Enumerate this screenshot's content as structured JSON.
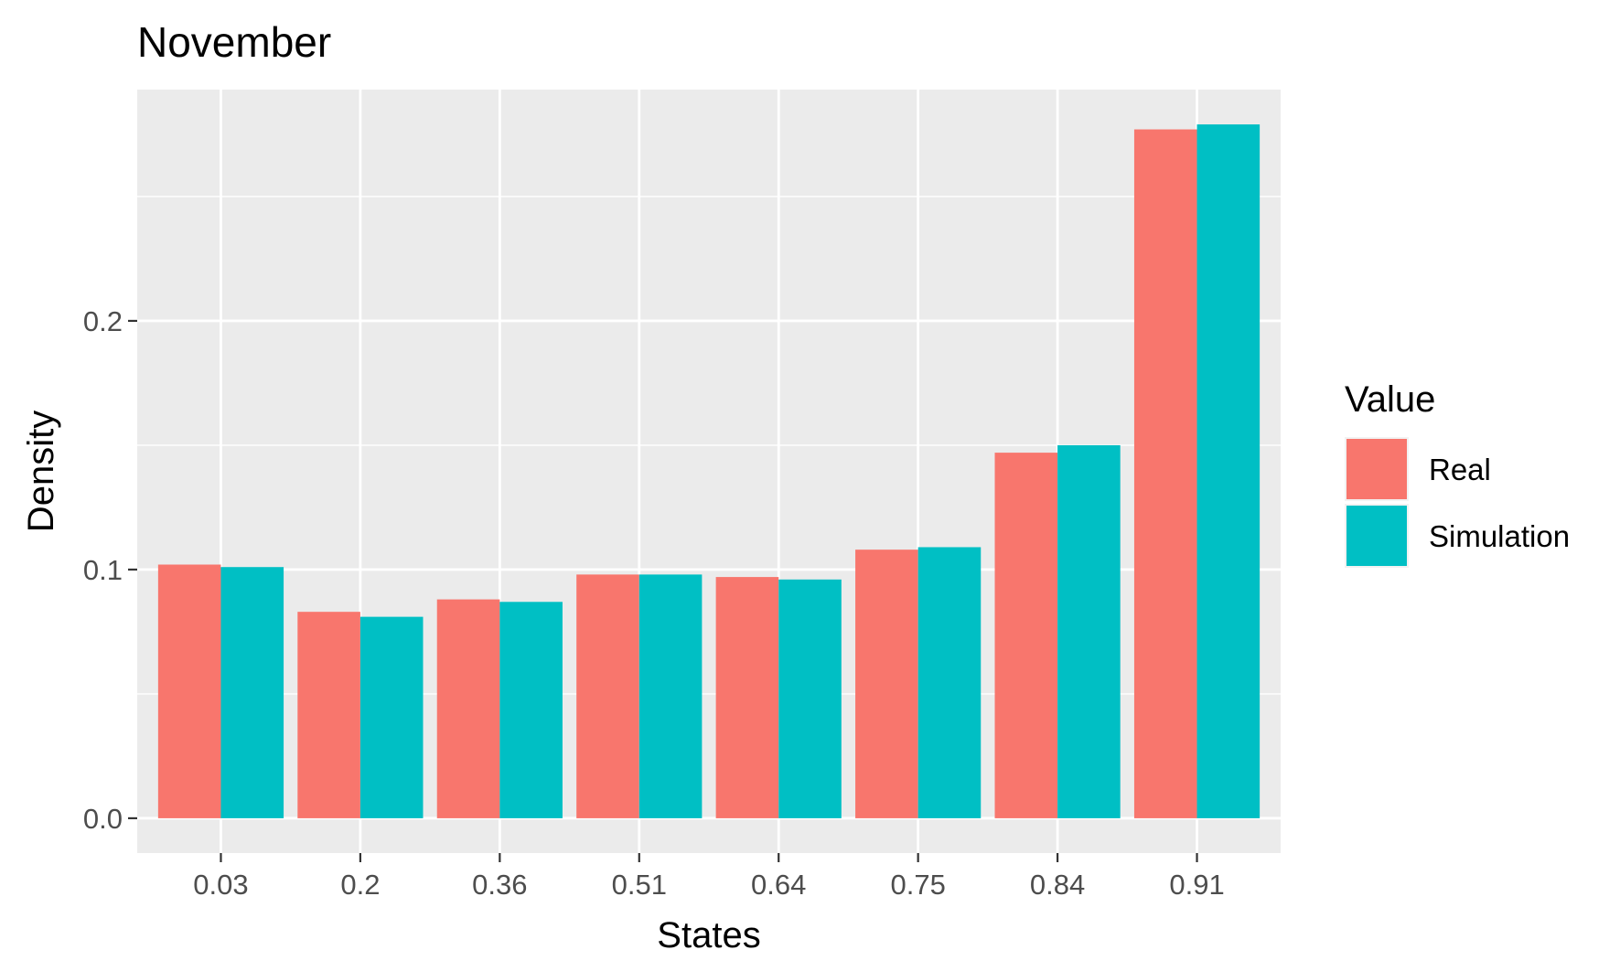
{
  "chart_data": {
    "type": "bar",
    "title": "November",
    "xlabel": "States",
    "ylabel": "Density",
    "categories": [
      "0.03",
      "0.2",
      "0.36",
      "0.51",
      "0.64",
      "0.75",
      "0.84",
      "0.91"
    ],
    "series": [
      {
        "name": "Real",
        "color": "#F8766D",
        "values": [
          0.102,
          0.083,
          0.088,
          0.098,
          0.097,
          0.108,
          0.147,
          0.277
        ]
      },
      {
        "name": "Simulation",
        "color": "#00BFC4",
        "values": [
          0.101,
          0.081,
          0.087,
          0.098,
          0.096,
          0.109,
          0.15,
          0.279
        ]
      }
    ],
    "ylim": [
      -0.014,
      0.293
    ],
    "yticks": [
      {
        "value": 0.0,
        "label": "0.0"
      },
      {
        "value": 0.1,
        "label": "0.1"
      },
      {
        "value": 0.2,
        "label": "0.2"
      }
    ],
    "yminor": [
      0.05,
      0.15,
      0.25
    ],
    "grid": true,
    "legend": {
      "title": "Value",
      "position": "right"
    },
    "panel_background": "#EBEBEB",
    "grid_color": "#FFFFFF"
  }
}
